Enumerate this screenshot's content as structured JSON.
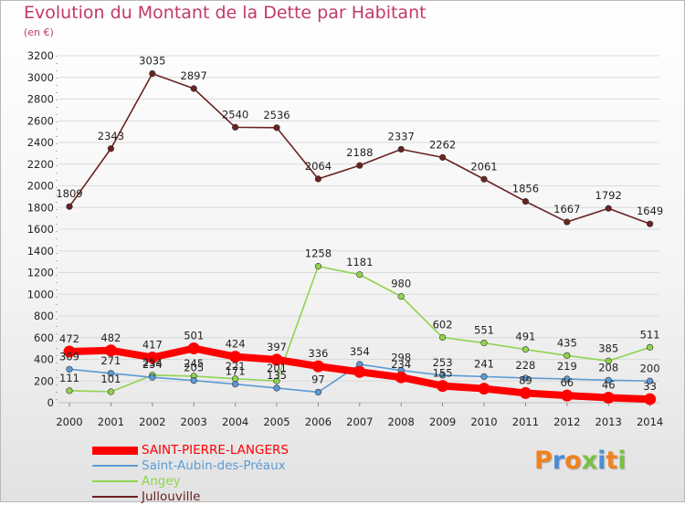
{
  "chart_data": {
    "type": "line",
    "title": "Evolution du Montant de la Dette par Habitant",
    "subtitle": "(en €)",
    "xlabel": "",
    "ylabel": "",
    "categories": [
      "2000",
      "2001",
      "2002",
      "2003",
      "2004",
      "2005",
      "2006",
      "2007",
      "2008",
      "2009",
      "2010",
      "2011",
      "2012",
      "2013",
      "2014"
    ],
    "ylim": [
      0,
      3200
    ],
    "yticks": [
      0,
      200,
      400,
      600,
      800,
      1000,
      1200,
      1400,
      1600,
      1800,
      2000,
      2200,
      2400,
      2600,
      2800,
      3000,
      3200
    ],
    "grid": "horizontal",
    "legend_position": "bottom-left",
    "series": [
      {
        "name": "SAINT-PIERRE-LANGERS",
        "color": "#ff0000",
        "values": [
          472,
          482,
          417,
          501,
          424,
          397,
          336,
          284,
          234,
          155,
          130,
          89,
          66,
          46,
          33
        ],
        "labels": [
          "472",
          "482",
          "417",
          "501",
          "424",
          "397",
          "336",
          "",
          "234",
          "155",
          "",
          "89",
          "66",
          "46",
          "33"
        ]
      },
      {
        "name": "Saint-Aubin-des-Préaux",
        "color": "#5b9bd5",
        "values": [
          309,
          271,
          234,
          205,
          171,
          135,
          97,
          354,
          298,
          253,
          241,
          228,
          219,
          208,
          200
        ],
        "labels": [
          "309",
          "271",
          "234",
          "205",
          "171",
          "135",
          "97",
          "354",
          "298",
          "253",
          "241",
          "228",
          "219",
          "208",
          "200"
        ]
      },
      {
        "name": "Angey",
        "color": "#8fd44f",
        "values": [
          111,
          101,
          254,
          245,
          221,
          201,
          1258,
          1181,
          980,
          602,
          551,
          491,
          435,
          385,
          511
        ],
        "labels": [
          "111",
          "101",
          "254",
          "245",
          "221",
          "201",
          "1258",
          "1181",
          "980",
          "602",
          "551",
          "491",
          "435",
          "385",
          "511"
        ]
      },
      {
        "name": "Jullouville",
        "color": "#6b2222",
        "values": [
          1809,
          2343,
          3035,
          2897,
          2540,
          2536,
          2064,
          2188,
          2337,
          2262,
          2061,
          1856,
          1667,
          1792,
          1649
        ],
        "labels": [
          "1809",
          "2343",
          "3035",
          "2897",
          "2540",
          "2536",
          "2064",
          "2188",
          "2337",
          "2262",
          "2061",
          "1856",
          "1667",
          "1792",
          "1649"
        ]
      }
    ]
  },
  "logo": {
    "text": "Proxiti",
    "colors": [
      "#f0821e",
      "#4a8fd4",
      "#f0821e",
      "#7bc043",
      "#4a8fd4",
      "#f0821e",
      "#7bc043"
    ]
  }
}
